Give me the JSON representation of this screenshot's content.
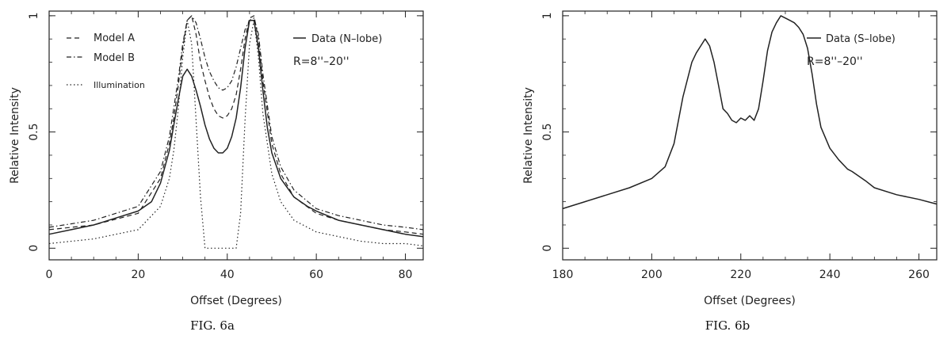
{
  "chart_data": [
    {
      "type": "line",
      "caption": "FIG. 6a",
      "xlabel": "Offset (Degrees)",
      "ylabel": "Relative Intensity",
      "xlim": [
        0,
        84
      ],
      "ylim": [
        -0.05,
        1.02
      ],
      "xticks": [
        "0",
        "20",
        "40",
        "60",
        "80"
      ],
      "xtick_values": [
        0,
        20,
        40,
        60,
        80
      ],
      "yticks": [
        "0",
        "0.5",
        "1"
      ],
      "ytick_values": [
        0,
        0.5,
        1
      ],
      "annotation": "R=8''–20''",
      "legend_left": [
        {
          "label": "Model A",
          "style": "dashed"
        },
        {
          "label": "Model B",
          "style": "dashdot"
        },
        {
          "label": "Illumination",
          "style": "dotted"
        }
      ],
      "legend_right": [
        {
          "label": "Data (N–lobe)",
          "style": "solid"
        }
      ],
      "series": [
        {
          "name": "Data (N–lobe)",
          "style": "solid",
          "x": [
            0,
            5,
            10,
            15,
            20,
            23,
            25,
            27,
            28,
            29,
            30,
            31,
            32,
            33,
            34,
            35,
            36,
            37,
            38,
            39,
            40,
            41,
            42,
            43,
            44,
            45,
            46,
            47,
            48,
            49,
            50,
            52,
            55,
            58,
            60,
            65,
            70,
            75,
            80,
            84
          ],
          "y": [
            0.06,
            0.08,
            0.1,
            0.13,
            0.16,
            0.2,
            0.28,
            0.42,
            0.53,
            0.64,
            0.74,
            0.77,
            0.74,
            0.68,
            0.61,
            0.53,
            0.47,
            0.43,
            0.41,
            0.41,
            0.43,
            0.48,
            0.56,
            0.69,
            0.86,
            0.98,
            0.98,
            0.86,
            0.68,
            0.52,
            0.41,
            0.3,
            0.22,
            0.18,
            0.16,
            0.12,
            0.1,
            0.08,
            0.06,
            0.05
          ]
        },
        {
          "name": "Model A",
          "style": "dashed",
          "x": [
            0,
            10,
            20,
            25,
            27,
            28,
            29,
            30,
            31,
            32,
            33,
            34,
            35,
            36,
            37,
            38,
            39,
            40,
            41,
            42,
            43,
            44,
            45,
            46,
            47,
            48,
            50,
            52,
            55,
            60,
            65,
            70,
            75,
            80,
            84
          ],
          "y": [
            0.08,
            0.1,
            0.15,
            0.3,
            0.45,
            0.56,
            0.7,
            0.86,
            0.98,
            1.0,
            0.92,
            0.8,
            0.72,
            0.65,
            0.6,
            0.57,
            0.56,
            0.57,
            0.6,
            0.66,
            0.77,
            0.9,
            0.99,
            1.0,
            0.9,
            0.72,
            0.45,
            0.32,
            0.22,
            0.15,
            0.12,
            0.1,
            0.08,
            0.07,
            0.06
          ]
        },
        {
          "name": "Model B",
          "style": "dashdot",
          "x": [
            0,
            10,
            20,
            25,
            27,
            29,
            30,
            31,
            32,
            33,
            34,
            35,
            36,
            37,
            38,
            39,
            40,
            41,
            42,
            43,
            44,
            45,
            46,
            47,
            48,
            50,
            52,
            55,
            60,
            65,
            70,
            75,
            80,
            84
          ],
          "y": [
            0.09,
            0.12,
            0.18,
            0.33,
            0.48,
            0.73,
            0.88,
            0.98,
            1.0,
            0.97,
            0.9,
            0.82,
            0.76,
            0.72,
            0.69,
            0.68,
            0.69,
            0.72,
            0.78,
            0.86,
            0.94,
            0.98,
            0.99,
            0.92,
            0.75,
            0.48,
            0.35,
            0.25,
            0.17,
            0.14,
            0.12,
            0.1,
            0.09,
            0.08
          ]
        },
        {
          "name": "Illumination",
          "style": "dotted",
          "x": [
            0,
            10,
            20,
            25,
            27,
            28,
            29,
            30,
            31,
            32,
            33,
            34,
            35,
            36,
            40,
            42,
            43,
            44,
            45,
            46,
            47,
            48,
            50,
            52,
            55,
            60,
            65,
            70,
            75,
            80,
            84
          ],
          "y": [
            0.02,
            0.04,
            0.08,
            0.18,
            0.3,
            0.42,
            0.6,
            0.82,
            0.98,
            0.88,
            0.55,
            0.22,
            0.0,
            0.0,
            0.0,
            0.0,
            0.15,
            0.55,
            0.88,
            0.98,
            0.82,
            0.58,
            0.32,
            0.2,
            0.12,
            0.07,
            0.05,
            0.03,
            0.02,
            0.02,
            0.01
          ]
        }
      ]
    },
    {
      "type": "line",
      "caption": "FIG. 6b",
      "xlabel": "Offset (Degrees)",
      "ylabel": "Relative Intensity",
      "xlim": [
        180,
        264
      ],
      "ylim": [
        -0.05,
        1.02
      ],
      "xticks": [
        "180",
        "200",
        "220",
        "240",
        "260"
      ],
      "xtick_values": [
        180,
        200,
        220,
        240,
        260
      ],
      "yticks": [
        "0",
        "0.5",
        "1"
      ],
      "ytick_values": [
        0,
        0.5,
        1
      ],
      "annotation": "R=8''–20''",
      "legend_right": [
        {
          "label": "Data (S–lobe)",
          "style": "solid"
        }
      ],
      "series": [
        {
          "name": "Data (S–lobe)",
          "style": "solid",
          "x": [
            180,
            185,
            190,
            195,
            200,
            203,
            205,
            207,
            209,
            210,
            211,
            212,
            213,
            214,
            215,
            216,
            217,
            218,
            219,
            220,
            221,
            222,
            223,
            224,
            225,
            226,
            227,
            228,
            229,
            230,
            231,
            232,
            233,
            234,
            235,
            236,
            237,
            238,
            240,
            242,
            244,
            245,
            248,
            250,
            255,
            260,
            264
          ],
          "y": [
            0.17,
            0.2,
            0.23,
            0.26,
            0.3,
            0.35,
            0.45,
            0.65,
            0.8,
            0.84,
            0.87,
            0.9,
            0.87,
            0.8,
            0.7,
            0.6,
            0.58,
            0.55,
            0.54,
            0.56,
            0.55,
            0.57,
            0.55,
            0.6,
            0.72,
            0.85,
            0.93,
            0.97,
            1.0,
            0.99,
            0.98,
            0.97,
            0.95,
            0.92,
            0.86,
            0.75,
            0.62,
            0.52,
            0.43,
            0.38,
            0.34,
            0.33,
            0.29,
            0.26,
            0.23,
            0.21,
            0.19
          ]
        }
      ]
    }
  ]
}
